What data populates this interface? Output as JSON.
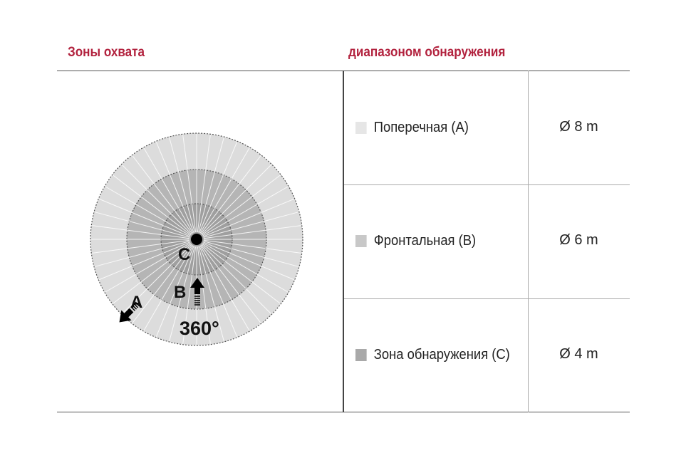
{
  "header": {
    "left_title": "Зоны охвата",
    "right_title": "диапазоном обнаружения"
  },
  "diagram": {
    "labels": {
      "a": "A",
      "b": "B",
      "c": "C",
      "angle": "360°"
    },
    "colors": {
      "outer": "#dcdcdc",
      "middle": "#b5b5b5",
      "inner": "#9f9f9f"
    }
  },
  "rows": [
    {
      "label": "Поперечная (A)",
      "value": "Ø 8 m",
      "swatch": "#e6e6e6"
    },
    {
      "label": "Фронтальная (B)",
      "value": "Ø 6 m",
      "swatch": "#c8c8c8"
    },
    {
      "label": "Зона обнаружения (C)",
      "value": "Ø 4 m",
      "swatch": "#a9a9a9"
    }
  ],
  "accent": "#b2223e"
}
